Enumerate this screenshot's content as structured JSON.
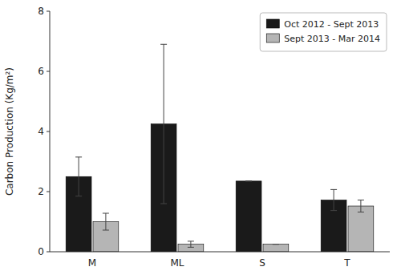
{
  "chart_data": {
    "type": "bar",
    "categories": [
      "M",
      "ML",
      "S",
      "T"
    ],
    "series": [
      {
        "name": "Oct 2012 - Sept 2013",
        "color": "#1a1a1a",
        "values": [
          2.5,
          4.25,
          2.35,
          1.72
        ],
        "errors": [
          0.65,
          2.65,
          0.0,
          0.35
        ]
      },
      {
        "name": "Sept 2013 - Mar 2014",
        "color": "#b5b5b5",
        "values": [
          1.0,
          0.25,
          0.25,
          1.52
        ],
        "errors": [
          0.28,
          0.1,
          0.0,
          0.2
        ]
      }
    ],
    "y_label": "Carbon Production (Kg/m²)",
    "ylim": [
      0,
      8
    ],
    "yticks": [
      0,
      2,
      4,
      6,
      8
    ],
    "grid": false,
    "legend": "upper right"
  }
}
